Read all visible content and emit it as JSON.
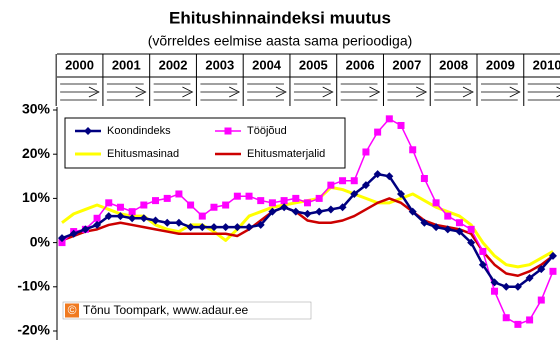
{
  "chart_data": {
    "type": "line",
    "title": "Ehitushinnaindeksi muutus",
    "subtitle": "(võrreldes eelmise aasta sama perioodiga)",
    "years": [
      "2000",
      "2001",
      "2002",
      "2003",
      "2004",
      "2005",
      "2006",
      "2007",
      "2008",
      "2009",
      "2010"
    ],
    "points_per_year": 4,
    "ylim": [
      -20,
      30
    ],
    "yticks": [
      {
        "value": -20,
        "label": "-20%"
      },
      {
        "value": -10,
        "label": "-10%"
      },
      {
        "value": 0,
        "label": "0%"
      },
      {
        "value": 10,
        "label": "10%"
      },
      {
        "value": 20,
        "label": "20%"
      },
      {
        "value": 30,
        "label": "30%"
      }
    ],
    "grid": false,
    "legend": "top-left",
    "copyright_symbol": "©",
    "copyright": "Tõnu Toompark, www.adaur.ee",
    "series": [
      {
        "name": "Koondindeks",
        "color": "#000080",
        "marker": "diamond",
        "width": 2.5,
        "values": [
          1,
          2,
          3,
          4,
          6,
          6,
          5.5,
          5.5,
          5,
          4.5,
          4.5,
          3.5,
          3.5,
          3.5,
          3.5,
          3.5,
          3.5,
          4,
          7,
          8,
          7,
          6.5,
          7,
          7.5,
          8,
          11,
          13,
          15.5,
          15,
          11,
          7,
          4.5,
          3.5,
          3,
          2.5,
          0,
          -5,
          -9,
          -10,
          -10,
          -8,
          -6,
          -3
        ]
      },
      {
        "name": "Tööjõud",
        "color": "#ff00ff",
        "marker": "square",
        "width": 1.5,
        "values": [
          0,
          2.5,
          3,
          5.5,
          9,
          8,
          7,
          8.5,
          9.5,
          10,
          11,
          8.5,
          6,
          8,
          8.5,
          10.5,
          10.5,
          9.5,
          9,
          9.5,
          10,
          9,
          10,
          13,
          14,
          14,
          20.5,
          25,
          28,
          26.5,
          21,
          14.5,
          9,
          6,
          4.5,
          3,
          -2,
          -11,
          -17,
          -18.5,
          -17.5,
          -13,
          -6.5
        ]
      },
      {
        "name": "Ehitusmasinad",
        "color": "#ffff00",
        "marker": null,
        "width": 3,
        "values": [
          4.5,
          6.5,
          7.5,
          8.5,
          7.5,
          6.5,
          6,
          6,
          4,
          3,
          2.5,
          4,
          4,
          2.5,
          0.5,
          3,
          6,
          7,
          8,
          8.5,
          9,
          9.5,
          10,
          12.5,
          12,
          11,
          10,
          9,
          9,
          10,
          11,
          9.5,
          8,
          7,
          6,
          4,
          0,
          -3,
          -5,
          -5.5,
          -5,
          -3.5,
          -2
        ]
      },
      {
        "name": "Ehitusmaterjalid",
        "color": "#cc0000",
        "marker": null,
        "width": 2.5,
        "values": [
          0.5,
          1.5,
          2.5,
          3,
          4,
          4.5,
          4,
          3.5,
          3,
          2.5,
          2,
          2,
          2,
          2,
          2,
          1.5,
          3,
          5,
          7,
          8,
          7,
          5,
          4.5,
          4.5,
          5,
          6,
          7.5,
          9,
          10,
          9,
          7,
          5,
          4,
          3.5,
          3,
          2,
          -2,
          -5,
          -7,
          -7.5,
          -6.5,
          -5,
          -3
        ]
      }
    ]
  }
}
